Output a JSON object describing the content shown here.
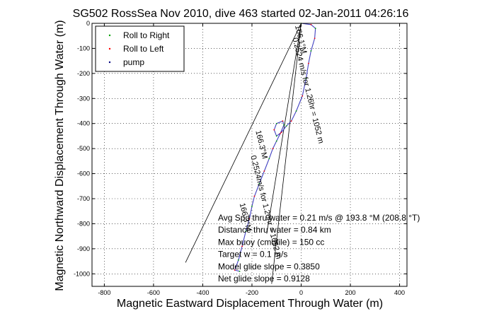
{
  "chart_data": {
    "type": "scatter",
    "title": "SG502 RossSea Nov 2010, dive 463 started 02-Jan-2011 04:26:16",
    "xlabel": "Magnetic Eastward Displacement Through Water (m)",
    "ylabel": "Magnetic Northward Displacement Through Water (m)",
    "xlim": [
      -850,
      430
    ],
    "ylim": [
      -1050,
      0
    ],
    "xticks": [
      -800,
      -600,
      -400,
      -200,
      0,
      200,
      400
    ],
    "yticks": [
      0,
      -100,
      -200,
      -300,
      -400,
      -500,
      -600,
      -700,
      -800,
      -900,
      -1000
    ],
    "grid": true,
    "legend_position": "top-left",
    "legend": [
      {
        "label": "Roll to Right",
        "color": "#00a000"
      },
      {
        "label": "Roll to Left",
        "color": "#ff0000"
      },
      {
        "label": "pump",
        "color": "#000080"
      }
    ],
    "track": {
      "color": "#4040c0",
      "points": [
        [
          0,
          0
        ],
        [
          40,
          -5
        ],
        [
          58,
          -20
        ],
        [
          55,
          -60
        ],
        [
          40,
          -110
        ],
        [
          30,
          -160
        ],
        [
          20,
          -220
        ],
        [
          5,
          -290
        ],
        [
          -20,
          -350
        ],
        [
          -40,
          -390
        ],
        [
          -60,
          -410
        ],
        [
          -80,
          -435
        ],
        [
          -100,
          -450
        ],
        [
          -110,
          -425
        ],
        [
          -100,
          -400
        ],
        [
          -75,
          -390
        ],
        [
          -70,
          -405
        ],
        [
          -85,
          -440
        ],
        [
          -100,
          -470
        ],
        [
          -115,
          -500
        ],
        [
          -130,
          -540
        ],
        [
          -150,
          -590
        ],
        [
          -170,
          -640
        ],
        [
          -190,
          -690
        ],
        [
          -200,
          -730
        ],
        [
          -210,
          -780
        ],
        [
          -225,
          -830
        ],
        [
          -240,
          -890
        ],
        [
          -255,
          -945
        ],
        [
          -270,
          -985
        ],
        [
          -250,
          -990
        ]
      ]
    },
    "lines": [
      {
        "name": "glide line a",
        "points": [
          [
            0,
            0
          ],
          [
            -470,
            -955
          ]
        ]
      },
      {
        "name": "glide line b",
        "points": [
          [
            0,
            0
          ],
          [
            -140,
            -840
          ]
        ]
      },
      {
        "name": "glide line c",
        "points": [
          [
            0,
            0
          ],
          [
            -120,
            -1040
          ]
        ]
      }
    ],
    "line_labels": [
      {
        "text": "166.1°M",
        "x": -25,
        "y": -10,
        "angle": 76
      },
      {
        "text": "0.2524 m/s for 1.26hr = 1052 m",
        "x": -35,
        "y": -60,
        "angle": 76
      },
      {
        "text": "166.3°M",
        "x": -185,
        "y": -430,
        "angle": 76
      },
      {
        "text": "0.2524m/s for 1.26hr = 1052 m",
        "x": -205,
        "y": -530,
        "angle": 76
      },
      {
        "text": "166.3°M",
        "x": -250,
        "y": -720,
        "angle": 76
      }
    ],
    "annotations": [
      "Avg Spd thru water =  0.21 m/s @ 193.8   °M (208.8 °T)",
      "Distance thru water =  0.84 km",
      "Max buoy (cmdfile) = 150 cc",
      "Target w = 0.1 m/s",
      "Model glide slope = 0.3850",
      "Net glide slope = 0.9128"
    ]
  }
}
